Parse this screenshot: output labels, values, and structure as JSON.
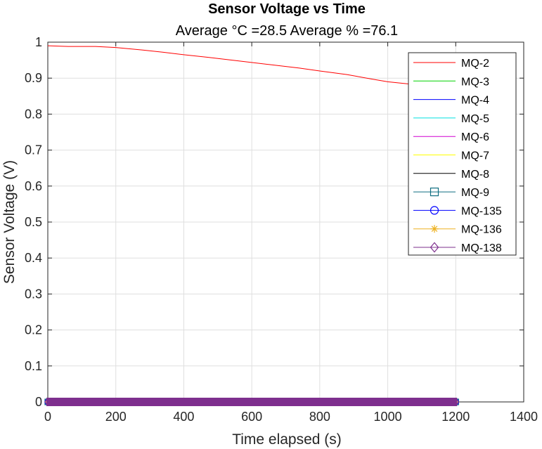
{
  "chart_data": {
    "type": "line",
    "title": "Sensor Voltage vs Time",
    "subtitle": "Average °C =28.5    Average % =76.1",
    "xlabel": "Time elapsed (s)",
    "ylabel": "Sensor Voltage (V)",
    "xlim": [
      0,
      1400
    ],
    "ylim": [
      0,
      1
    ],
    "xticks": [
      "0",
      "200",
      "400",
      "600",
      "800",
      "1000",
      "1200",
      "1400"
    ],
    "yticks": [
      "0",
      "0.1",
      "0.2",
      "0.3",
      "0.4",
      "0.5",
      "0.6",
      "0.7",
      "0.8",
      "0.9",
      "1"
    ],
    "grid": true,
    "legend_position": "top-right",
    "series": [
      {
        "name": "MQ-2",
        "color": "#ff0000",
        "marker": "none",
        "x": [
          0,
          60,
          140,
          200,
          280,
          340,
          400,
          470,
          560,
          650,
          740,
          800,
          880,
          950,
          1000,
          1060,
          1120,
          1200
        ],
        "y": [
          0.99,
          0.988,
          0.988,
          0.985,
          0.978,
          0.972,
          0.965,
          0.958,
          0.948,
          0.938,
          0.928,
          0.92,
          0.91,
          0.898,
          0.89,
          0.884,
          0.878,
          0.872
        ]
      },
      {
        "name": "MQ-3",
        "color": "#00d400",
        "marker": "none",
        "x": [
          0,
          1200
        ],
        "y": [
          0,
          0
        ]
      },
      {
        "name": "MQ-4",
        "color": "#0000ff",
        "marker": "none",
        "x": [
          0,
          1200
        ],
        "y": [
          0,
          0
        ]
      },
      {
        "name": "MQ-5",
        "color": "#00e0e0",
        "marker": "none",
        "x": [
          0,
          1200
        ],
        "y": [
          0,
          0
        ]
      },
      {
        "name": "MQ-6",
        "color": "#d000d0",
        "marker": "none",
        "x": [
          0,
          1200
        ],
        "y": [
          0,
          0
        ]
      },
      {
        "name": "MQ-7",
        "color": "#ffff00",
        "marker": "none",
        "x": [
          0,
          1200
        ],
        "y": [
          0,
          0
        ]
      },
      {
        "name": "MQ-8",
        "color": "#000000",
        "marker": "none",
        "x": [
          0,
          1200
        ],
        "y": [
          0,
          0
        ]
      },
      {
        "name": "MQ-9",
        "color": "#0f6d80",
        "marker": "square",
        "x": [
          0,
          1200
        ],
        "y": [
          0,
          0
        ]
      },
      {
        "name": "MQ-135",
        "color": "#0000ff",
        "marker": "circle",
        "x": [
          0,
          1200
        ],
        "y": [
          0,
          0
        ]
      },
      {
        "name": "MQ-136",
        "color": "#edb120",
        "marker": "asterisk",
        "x": [
          0,
          1200
        ],
        "y": [
          0,
          0
        ]
      },
      {
        "name": "MQ-138",
        "color": "#7e2f8e",
        "marker": "diamond",
        "x": [
          0,
          1200
        ],
        "y": [
          0,
          0
        ]
      }
    ]
  }
}
